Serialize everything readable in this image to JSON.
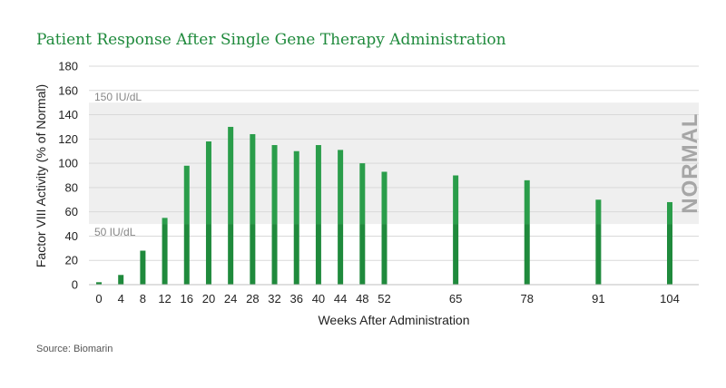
{
  "source": "Source: Biomarin",
  "colors": {
    "bar": "#1f8a3c",
    "bar_light": "#2a9d4a",
    "band": "#efefef",
    "grid": "#d9d9d9",
    "title": "#1f8a3c"
  },
  "chart_data": {
    "type": "bar",
    "title": "Patient Response After Single Gene Therapy Administration",
    "xlabel": "Weeks After Administration",
    "ylabel": "Factor VIII Activity (% of Normal)",
    "ylim": [
      0,
      180
    ],
    "yticks": [
      0,
      20,
      40,
      60,
      80,
      100,
      120,
      140,
      160,
      180
    ],
    "grid": true,
    "categories": [
      "0",
      "4",
      "8",
      "12",
      "16",
      "20",
      "24",
      "28",
      "32",
      "36",
      "40",
      "44",
      "48",
      "52",
      "65",
      "78",
      "91",
      "104"
    ],
    "x": [
      0,
      4,
      8,
      12,
      16,
      20,
      24,
      28,
      32,
      36,
      40,
      44,
      48,
      52,
      65,
      78,
      91,
      104
    ],
    "values": [
      2,
      8,
      28,
      55,
      98,
      118,
      130,
      124,
      115,
      110,
      115,
      111,
      100,
      93,
      90,
      86,
      70,
      68
    ],
    "normal_band": {
      "range": [
        50,
        150
      ],
      "upper_label": "150 IU/dL",
      "lower_label": "50 IU/dL",
      "label": "NORMAL"
    }
  }
}
